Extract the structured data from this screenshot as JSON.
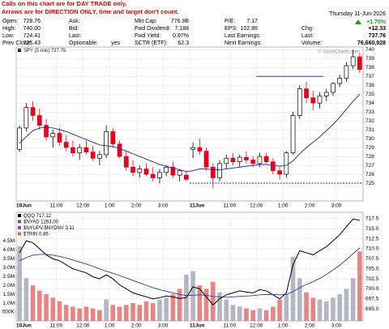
{
  "header": {
    "columns": [
      [
        [
          "Open:",
          "728.76"
        ],
        [
          "High:",
          "740.00"
        ],
        [
          "Low:",
          "724.41"
        ],
        [
          "Prev Close:",
          "725.43"
        ]
      ],
      [
        [
          "Ask:"
        ],
        [
          "Bid:"
        ],
        [
          "Last:"
        ],
        [
          "Optionable:",
          "yes"
        ]
      ],
      [
        [
          "Mkt Cap:",
          "776.9B"
        ],
        [
          "Fwd Dividend:",
          "7.188"
        ],
        [
          "Fwd Yield:",
          "0.97%"
        ],
        [
          "SCTR (ETF):",
          "62.3"
        ]
      ],
      [
        [
          "P/E:",
          "7.17"
        ],
        [
          "EPS:",
          "102.86"
        ],
        [
          "Last Earnings:"
        ],
        [
          "Next Earnings:"
        ]
      ]
    ],
    "date": "Thursday 11-Jun-2026",
    "change_pct": "+1.70%",
    "right": [
      [
        "Chg:",
        "+12.33"
      ],
      [
        "Last:",
        "737.76"
      ],
      [
        "Volume:",
        "76,660,928"
      ]
    ]
  },
  "note": [
    "Calls on this chart are for DAY TRADE only.",
    "Arrows are for DIRECTION ONLY, time and target don't count."
  ],
  "watermark": "© StockCharts.com",
  "chart_data": [
    {
      "type": "candlestick",
      "label": "SPY (5 min) 737.76",
      "categories": [
        "10Jun",
        null,
        null,
        null,
        null,
        null,
        "11:00",
        null,
        null,
        null,
        "12:00",
        null,
        null,
        null,
        "1:00",
        null,
        null,
        null,
        "2:00",
        null,
        null,
        null,
        "3:00",
        null,
        null,
        null,
        "11Jun",
        null,
        null,
        null,
        null,
        null,
        "11:00",
        null,
        null,
        null,
        "12:00",
        null,
        null,
        null,
        "1:00",
        null,
        null,
        null,
        "2:00",
        null,
        null,
        null,
        "3:00",
        null,
        null,
        null
      ],
      "open": [
        728.8,
        731.2,
        733.5,
        732.6,
        731.5,
        730.2,
        730.6,
        729.6,
        729.0,
        728.4,
        729.0,
        728.5,
        727.8,
        728.2,
        730.8,
        729.4,
        728.0,
        726.8,
        726.2,
        726.6,
        726.0,
        725.6,
        726.2,
        726.8,
        725.9,
        725.9,
        728.8,
        729.0,
        728.6,
        726.8,
        725.6,
        727.2,
        727.8,
        727.4,
        727.9,
        727.6,
        727.2,
        728.0,
        727.4,
        726.4,
        726.0,
        728.4,
        732.6,
        735.6,
        734.6,
        734.0,
        734.8,
        735.2,
        736.2,
        736.8,
        738.2,
        739.2
      ],
      "high": [
        731.5,
        734.0,
        734.2,
        733.4,
        732.2,
        731.0,
        731.2,
        730.4,
        729.8,
        729.4,
        729.8,
        729.2,
        728.6,
        731.5,
        731.2,
        729.8,
        728.6,
        727.6,
        727.0,
        727.2,
        726.8,
        726.6,
        727.0,
        727.4,
        726.6,
        726.4,
        729.6,
        730.0,
        729.0,
        727.2,
        727.6,
        728.2,
        728.4,
        728.2,
        728.6,
        728.0,
        728.4,
        728.4,
        727.8,
        726.8,
        728.6,
        733.0,
        736.0,
        736.4,
        735.4,
        735.2,
        735.6,
        736.4,
        737.2,
        738.6,
        740.0,
        739.6
      ],
      "low": [
        728.5,
        730.8,
        732.0,
        731.0,
        729.8,
        729.0,
        729.2,
        728.6,
        728.0,
        727.6,
        728.2,
        727.5,
        727.0,
        727.8,
        729.0,
        727.8,
        726.4,
        725.8,
        725.6,
        725.8,
        725.2,
        725.0,
        725.8,
        725.6,
        725.2,
        725.2,
        727.8,
        728.2,
        726.4,
        724.41,
        725.2,
        726.6,
        727.0,
        726.8,
        727.2,
        726.8,
        726.8,
        727.2,
        726.0,
        725.4,
        725.6,
        728.2,
        732.2,
        734.0,
        733.2,
        733.4,
        734.2,
        734.8,
        735.8,
        736.4,
        737.8,
        737.4
      ],
      "close": [
        731.2,
        733.5,
        732.6,
        731.5,
        730.2,
        730.6,
        729.6,
        729.0,
        728.4,
        729.0,
        728.5,
        727.8,
        728.2,
        730.8,
        729.4,
        728.0,
        726.8,
        726.2,
        726.6,
        726.0,
        725.6,
        726.2,
        726.8,
        725.9,
        726.4,
        725.43,
        729.0,
        728.6,
        726.8,
        725.6,
        727.2,
        727.8,
        727.4,
        727.9,
        727.6,
        727.2,
        728.0,
        727.4,
        726.4,
        726.0,
        728.4,
        732.6,
        735.6,
        734.6,
        734.0,
        734.8,
        735.2,
        736.2,
        736.8,
        738.2,
        739.2,
        737.76
      ],
      "up_color": "#000000",
      "down_color": "#e8001c",
      "ma": {
        "color": "#2b3aa0",
        "values": [
          729.5,
          730.2,
          730.9,
          731.2,
          731.3,
          731.2,
          731.0,
          730.8,
          730.5,
          730.2,
          729.9,
          729.6,
          729.3,
          729.2,
          729.1,
          728.9,
          728.6,
          728.3,
          728.0,
          727.7,
          727.4,
          727.1,
          726.9,
          726.7,
          726.5,
          726.3,
          726.4,
          726.6,
          726.6,
          726.5,
          726.5,
          726.6,
          726.7,
          726.8,
          726.9,
          727.0,
          727.1,
          727.1,
          727.0,
          726.9,
          727.0,
          727.5,
          728.3,
          729.0,
          729.6,
          730.2,
          730.9,
          731.6,
          732.4,
          733.3,
          734.2,
          735.0
        ]
      },
      "levels": [
        {
          "value": 737,
          "color": "#2b3aa0",
          "style": "solid"
        },
        {
          "value": 725,
          "color": "#2b3aa0",
          "style": "dashed"
        }
      ],
      "ylim": [
        723.0,
        740.3
      ],
      "yticks": [
        725,
        726,
        727,
        728,
        729,
        730,
        731,
        732,
        733,
        734,
        735,
        736,
        737,
        738,
        739,
        740
      ],
      "grid": true
    },
    {
      "type": "line",
      "series": [
        {
          "name": "QQQ 717.12",
          "color": "#000000",
          "values": [
            709,
            712,
            711.5,
            710,
            708.5,
            707.5,
            707,
            706,
            705,
            704.5,
            704,
            703,
            702.5,
            703.5,
            702.5,
            701,
            700,
            699,
            698.5,
            698,
            697.5,
            697.8,
            698.2,
            698,
            697.6,
            697.8,
            700.5,
            700,
            698,
            696,
            697.5,
            698.5,
            699,
            699.5,
            699.2,
            699,
            699.8,
            699.5,
            698.5,
            697.5,
            699,
            706,
            709.5,
            709,
            708.5,
            709.5,
            710.5,
            712,
            713.5,
            715.5,
            717.4,
            717.12
          ]
        },
        {
          "color": "#2b3aa0",
          "values": [
            707,
            707.8,
            708.4,
            708.6,
            708.6,
            708.4,
            708.1,
            707.7,
            707.2,
            706.7,
            706.2,
            705.6,
            705,
            704.4,
            703.9,
            703.3,
            702.7,
            702.1,
            701.5,
            700.9,
            700.3,
            699.8,
            699.4,
            699,
            698.6,
            698.3,
            698.4,
            698.5,
            698.4,
            698.1,
            698,
            697.9,
            698,
            698.1,
            698.2,
            698.3,
            698.5,
            698.6,
            698.6,
            698.5,
            698.6,
            699.3,
            700.3,
            701.1,
            701.8,
            702.6,
            703.6,
            704.7,
            705.9,
            707.3,
            708.8,
            710.2
          ]
        },
        {
          "axis": "y2",
          "color": "#a8a8b8",
          "down_color": "#e07070",
          "values": [
            4200000,
            2400000,
            2000000,
            1700000,
            1500000,
            1300000,
            1100000,
            900000,
            800000,
            700000,
            800000,
            700000,
            600000,
            1200000,
            900000,
            800000,
            900000,
            1000000,
            900000,
            1100000,
            1000000,
            1200000,
            1300000,
            1500000,
            1800000,
            2600000,
            2800000,
            2000000,
            1800000,
            2200000,
            1600000,
            1200000,
            900000,
            800000,
            700000,
            600000,
            700000,
            600000,
            800000,
            1200000,
            1500000,
            3600000,
            2400000,
            1600000,
            1300000,
            1200000,
            1100000,
            1300000,
            1500000,
            1800000,
            2400000,
            3900000
          ]
        }
      ],
      "indicators": [
        {
          "name": "$NYAD 1263.00",
          "color": "#3a7d3a"
        },
        {
          "name": "$NYUPV:$NYDNV 3.11",
          "color": "#8a4fb0"
        },
        {
          "name": "$TRIN 0.86",
          "color": "#d07a20"
        }
      ],
      "ylim": [
        692.0,
        719.1
      ],
      "yticks": [
        {
          "value": 695,
          "label": "695.0"
        },
        {
          "value": 697.5,
          "label": "697.5"
        },
        {
          "value": 700,
          "label": "700.0"
        },
        {
          "value": 702.5,
          "label": "702.5"
        },
        {
          "value": 705,
          "label": "705.0"
        },
        {
          "value": 707.5,
          "label": "707.5"
        },
        {
          "value": 710,
          "label": "710.0"
        },
        {
          "value": 712.5,
          "label": "712.5"
        },
        {
          "value": 715,
          "label": "715.0"
        },
        {
          "value": 717.5,
          "label": "717.5"
        }
      ],
      "y2lim": [
        0,
        6100000
      ],
      "y2ticks": [
        {
          "value": 500000,
          "label": "500K"
        },
        {
          "value": 1000000,
          "label": "1.0M"
        },
        {
          "value": 1500000,
          "label": "1.5M"
        },
        {
          "value": 2000000,
          "label": "2.0M"
        },
        {
          "value": 2500000,
          "label": "2.5M"
        },
        {
          "value": 3000000,
          "label": "3.0M"
        },
        {
          "value": 3500000,
          "label": "3.5M"
        },
        {
          "value": 4000000,
          "label": "4.0M"
        },
        {
          "value": 4500000,
          "label": "4.5M"
        }
      ],
      "grid": true
    }
  ]
}
